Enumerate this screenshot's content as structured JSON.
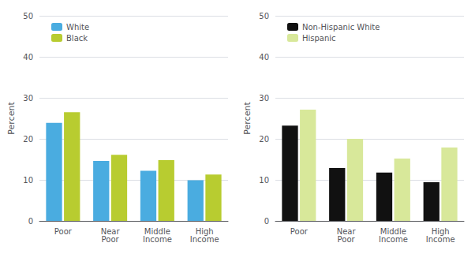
{
  "chart_data": [
    {
      "type": "bar",
      "categories": [
        "Poor",
        "Near\nPoor",
        "Middle\nIncome",
        "High\nIncome"
      ],
      "series": [
        {
          "name": "White",
          "color": "#4aace0",
          "values": [
            23.9,
            14.6,
            12.2,
            9.9
          ]
        },
        {
          "name": "Black",
          "color": "#b8cc30",
          "values": [
            26.5,
            16.1,
            14.8,
            11.3
          ]
        }
      ],
      "ylabel": "Percent",
      "ylim": [
        0,
        50
      ],
      "yticks": [
        0,
        10,
        20,
        30,
        40,
        50
      ],
      "grid": true,
      "legend": "upper left"
    },
    {
      "type": "bar",
      "categories": [
        "Poor",
        "Near\nPoor",
        "Middle\nIncome",
        "High\nIncome"
      ],
      "series": [
        {
          "name": "Non-Hispanic White",
          "color": "#111111",
          "values": [
            23.2,
            12.9,
            11.8,
            9.4
          ]
        },
        {
          "name": "Hispanic",
          "color": "#d8e89a",
          "values": [
            27.1,
            20.0,
            15.2,
            17.9
          ]
        }
      ],
      "ylabel": "Percent",
      "ylim": [
        0,
        50
      ],
      "yticks": [
        0,
        10,
        20,
        30,
        40,
        50
      ],
      "grid": true,
      "legend": "upper left"
    }
  ]
}
